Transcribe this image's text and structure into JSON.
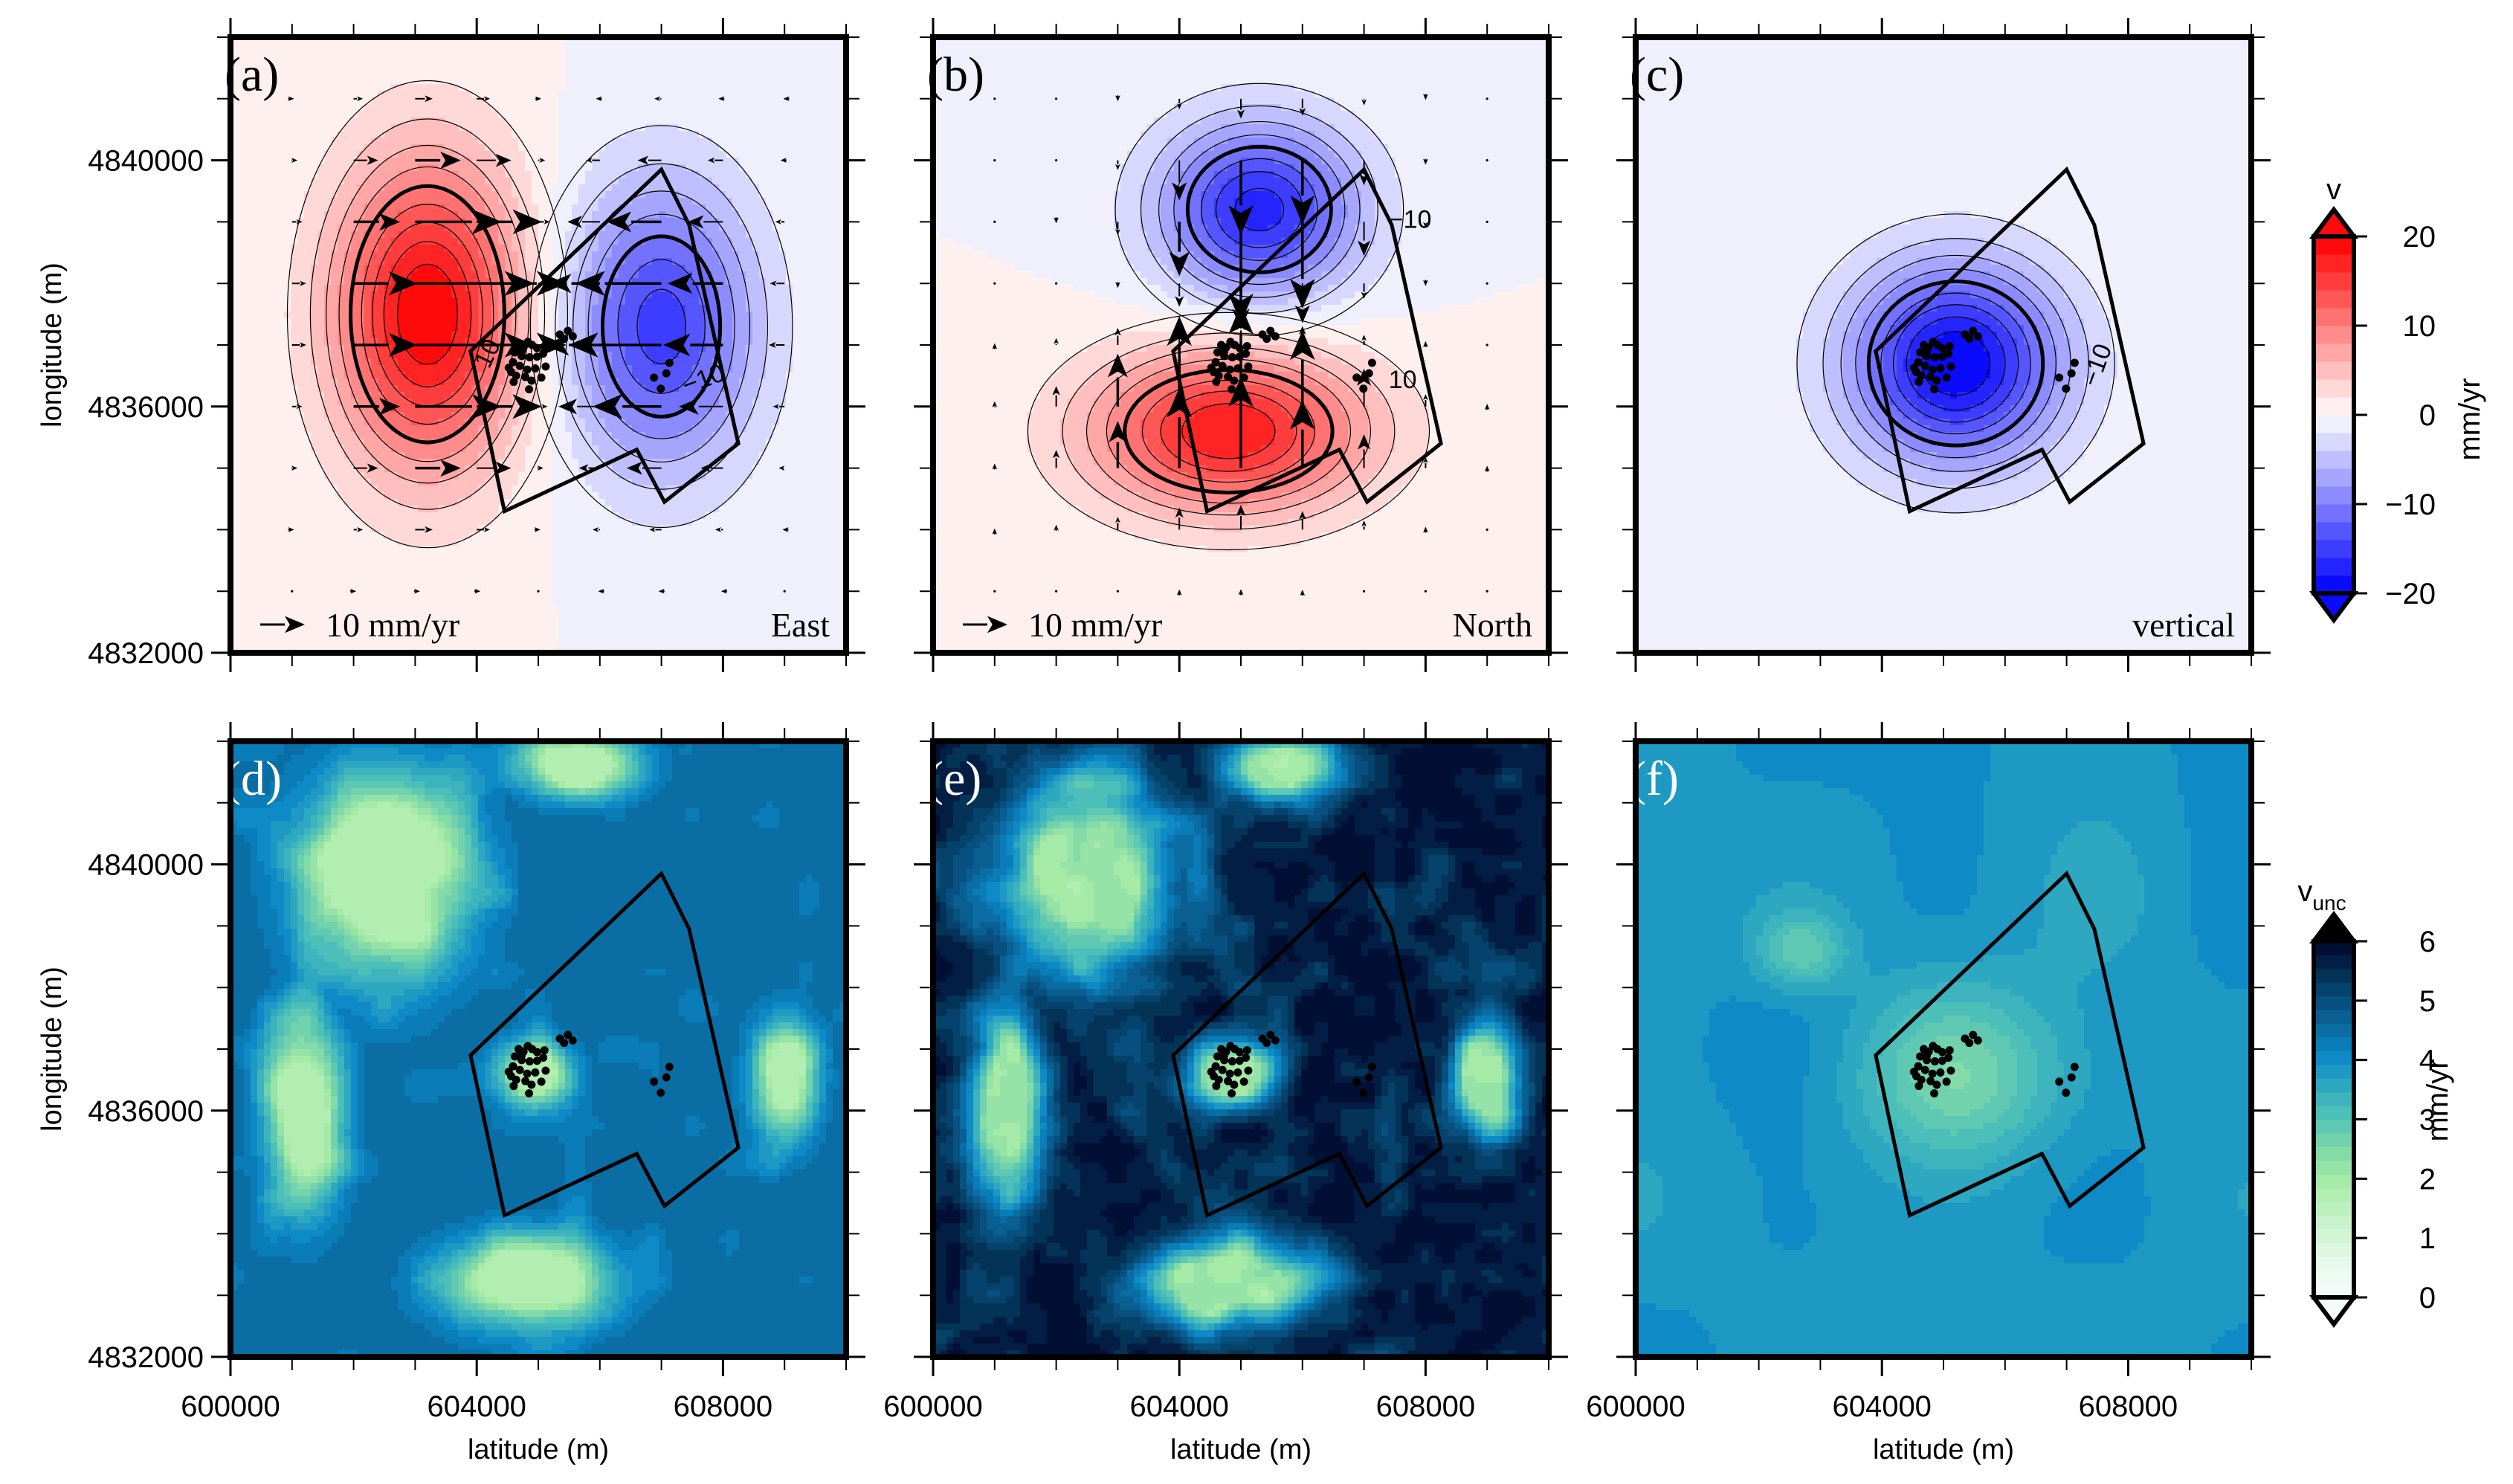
{
  "figure": {
    "description": "Six-panel map figure: velocity components (a-c) and velocity uncertainties (d-f)"
  },
  "chart_data": {
    "type": "heatmap",
    "shared_axes": {
      "xlabel": "latitude (m)",
      "ylabel": "longitude (m)",
      "xlim": [
        600000,
        610000
      ],
      "ylim": [
        4832000,
        4842000
      ],
      "x_major_ticks": [
        600000,
        604000,
        608000
      ],
      "y_major_ticks": [
        4832000,
        4836000,
        4840000
      ],
      "x_tick_labels": [
        "600000",
        "604000",
        "608000"
      ],
      "y_tick_labels": [
        "4832000",
        "4836000",
        "4840000"
      ],
      "minor_tick_step": 1000
    },
    "outline_polygon": [
      [
        603900,
        4836900
      ],
      [
        607000,
        4839850
      ],
      [
        607450,
        4838950
      ],
      [
        608250,
        4835400
      ],
      [
        607050,
        4834450
      ],
      [
        606600,
        4835300
      ],
      [
        604450,
        4834300
      ]
    ],
    "seismic_events": [
      [
        604830,
        4837050
      ],
      [
        604680,
        4837000
      ],
      [
        604760,
        4836960
      ],
      [
        604900,
        4837000
      ],
      [
        604620,
        4836880
      ],
      [
        604980,
        4836950
      ],
      [
        605100,
        4836980
      ],
      [
        604730,
        4836820
      ],
      [
        604860,
        4836800
      ],
      [
        604980,
        4836810
      ],
      [
        605080,
        4836860
      ],
      [
        604590,
        4836720
      ],
      [
        604700,
        4836660
      ],
      [
        604820,
        4836600
      ],
      [
        604950,
        4836620
      ],
      [
        605120,
        4836650
      ],
      [
        604560,
        4836560
      ],
      [
        604640,
        4836500
      ],
      [
        604790,
        4836480
      ],
      [
        604890,
        4836420
      ],
      [
        605050,
        4836470
      ],
      [
        604600,
        4836400
      ],
      [
        604850,
        4836280
      ],
      [
        605350,
        4837170
      ],
      [
        605480,
        4837230
      ],
      [
        605560,
        4837140
      ],
      [
        605420,
        4837100
      ],
      [
        607130,
        4836710
      ],
      [
        607080,
        4836540
      ],
      [
        606880,
        4836470
      ],
      [
        606990,
        4836290
      ],
      [
        604520,
        4836630
      ],
      [
        604730,
        4836900
      ]
    ],
    "top_colorbar": {
      "title": "v",
      "unit": "mm/yr",
      "range": [
        -20,
        20
      ],
      "step": 2,
      "ticks": [
        20,
        10,
        0,
        -10,
        -20
      ],
      "tick_labels": [
        "20",
        "10",
        "0",
        "−10",
        "−20"
      ],
      "colors": [
        "#0a0aff",
        "#2424ff",
        "#3d3dff",
        "#5656ff",
        "#7272ff",
        "#8c8cff",
        "#a6a6ff",
        "#bfbfff",
        "#d8d8ff",
        "#f0f0fd",
        "#fff0f0",
        "#ffd8d8",
        "#ffbfbf",
        "#ffa6a6",
        "#ff8c8c",
        "#ff7272",
        "#ff5656",
        "#ff3d3d",
        "#ff2424",
        "#ff0a0a"
      ],
      "triangle_low": "#0a0aff",
      "triangle_high": "#ff0a0a"
    },
    "bottom_colorbar": {
      "title": "v",
      "title_subscript": "unc",
      "unit": "mm/yr",
      "range": [
        0,
        6
      ],
      "step": 0.2,
      "ticks": [
        6,
        5,
        4,
        3,
        2,
        1,
        0
      ],
      "tick_labels": [
        "6",
        "5",
        "4",
        "3",
        "2",
        "1",
        "0"
      ],
      "colors_low_to_high": [
        "#f4fcf9",
        "#eefbf2",
        "#e6f9ea",
        "#ddf7e1",
        "#d3f5d6",
        "#c8f2cb",
        "#bdf0bf",
        "#b2edb2",
        "#a6eaa8",
        "#95e3a6",
        "#84dba8",
        "#72d2ad",
        "#5ec8b3",
        "#4bbfb8",
        "#3db4bd",
        "#2ea7c0",
        "#1e99c4",
        "#0e8bc7",
        "#0a7cb8",
        "#0a6ea5",
        "#0a5f92",
        "#07507f",
        "#05426c",
        "#033458",
        "#021e45",
        "#020f35"
      ],
      "triangle_low": "#f4fcf9",
      "triangle_high": "#000000"
    },
    "panels": [
      {
        "id": "a",
        "label": "(a)",
        "name": "East",
        "component": "east velocity",
        "show_reference_arrow": true,
        "reference_arrow_label": "10 mm/yr",
        "label_color": "#000000",
        "contour_labels": [
          "10",
          "−10"
        ],
        "peaks": [
          {
            "x": 603200,
            "y": 4837500,
            "value": 20,
            "sx": 1500,
            "sy": 2500
          },
          {
            "x": 607000,
            "y": 4837300,
            "value": -15,
            "sx": 1500,
            "sy": 2300
          }
        ],
        "arrow_grid": {
          "dx": 1000,
          "dy": 1000,
          "scale_mm_per_ref": 10
        }
      },
      {
        "id": "b",
        "label": "(b)",
        "name": "North",
        "component": "north velocity",
        "show_reference_arrow": true,
        "reference_arrow_label": "10 mm/yr",
        "label_color": "#000000",
        "contour_labels": [
          "10",
          "−10"
        ],
        "peaks": [
          {
            "x": 605300,
            "y": 4839200,
            "value": -17,
            "sx": 1600,
            "sy": 1400
          },
          {
            "x": 604800,
            "y": 4835600,
            "value": 18,
            "sx": 2200,
            "sy": 1300
          }
        ],
        "arrow_grid": {
          "dx": 1000,
          "dy": 1000,
          "scale_mm_per_ref": 10
        }
      },
      {
        "id": "c",
        "label": "(c)",
        "name": "vertical",
        "component": "vertical velocity",
        "show_reference_arrow": false,
        "label_color": "#000000",
        "contour_labels": [
          "−10"
        ],
        "peaks": [
          {
            "x": 605200,
            "y": 4836700,
            "value": -20,
            "sx": 1700,
            "sy": 1600
          }
        ]
      },
      {
        "id": "d",
        "label": "(d)",
        "name": "",
        "component": "east velocity uncertainty",
        "label_color": "#ffffff",
        "base_value": 4.0,
        "typical_range": [
          1.5,
          4.2
        ]
      },
      {
        "id": "e",
        "label": "(e)",
        "name": "",
        "component": "north velocity uncertainty",
        "label_color": "#ffffff",
        "base_value": 5.0,
        "typical_range": [
          1.8,
          5.5
        ]
      },
      {
        "id": "f",
        "label": "(f)",
        "name": "",
        "component": "vertical velocity uncertainty",
        "label_color": "#ffffff",
        "base_value": 3.3,
        "typical_range": [
          2.0,
          4.0
        ]
      }
    ]
  }
}
